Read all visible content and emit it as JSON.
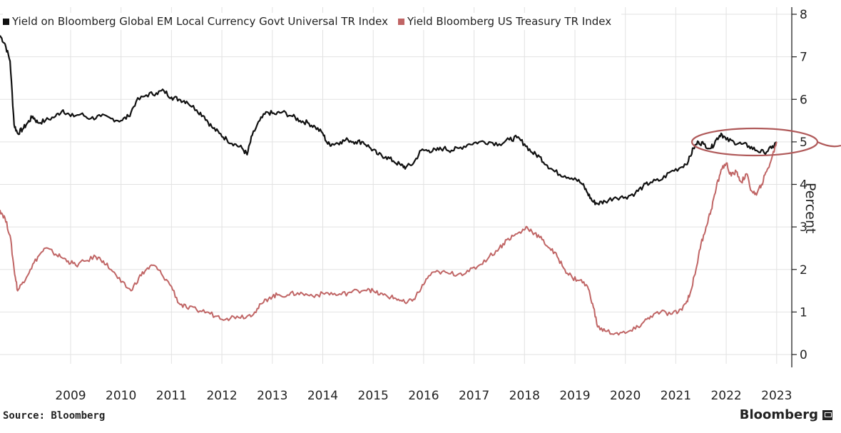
{
  "chart_data": {
    "type": "line",
    "title": "",
    "xlabel": "",
    "ylabel": "Percent",
    "ylim": [
      0,
      8
    ],
    "yticks": [
      "0",
      "1",
      "2",
      "3",
      "4",
      "5",
      "6",
      "7",
      "8"
    ],
    "y_axis_side": "right",
    "xticks": [
      "2009",
      "2010",
      "2011",
      "2012",
      "2013",
      "2014",
      "2015",
      "2016",
      "2017",
      "2018",
      "2019",
      "2020",
      "2021",
      "2022",
      "2023"
    ],
    "xlim": [
      2008.1,
      2023.8
    ],
    "grid": true,
    "legend_position": "top-left",
    "series": [
      {
        "name": "Yield on Bloomberg Global EM Local Currency Govt Universal TR Index",
        "color": "#111111",
        "points": [
          [
            2008.1,
            7.5
          ],
          [
            2008.2,
            7.3
          ],
          [
            2008.3,
            6.9
          ],
          [
            2008.38,
            5.4
          ],
          [
            2008.45,
            5.2
          ],
          [
            2008.55,
            5.3
          ],
          [
            2008.65,
            5.45
          ],
          [
            2008.75,
            5.6
          ],
          [
            2008.85,
            5.45
          ],
          [
            2009.0,
            5.5
          ],
          [
            2009.2,
            5.6
          ],
          [
            2009.35,
            5.75
          ],
          [
            2009.5,
            5.6
          ],
          [
            2009.7,
            5.65
          ],
          [
            2009.9,
            5.55
          ],
          [
            2010.1,
            5.6
          ],
          [
            2010.3,
            5.55
          ],
          [
            2010.5,
            5.5
          ],
          [
            2010.65,
            5.6
          ],
          [
            2010.8,
            5.95
          ],
          [
            2011.0,
            6.1
          ],
          [
            2011.2,
            6.15
          ],
          [
            2011.35,
            6.2
          ],
          [
            2011.5,
            6.05
          ],
          [
            2011.65,
            6.0
          ],
          [
            2011.8,
            5.95
          ],
          [
            2012.0,
            5.75
          ],
          [
            2012.15,
            5.6
          ],
          [
            2012.3,
            5.35
          ],
          [
            2012.45,
            5.2
          ],
          [
            2012.6,
            5.05
          ],
          [
            2012.75,
            4.95
          ],
          [
            2012.9,
            4.85
          ],
          [
            2013.0,
            4.7
          ],
          [
            2013.1,
            5.15
          ],
          [
            2013.25,
            5.5
          ],
          [
            2013.4,
            5.7
          ],
          [
            2013.55,
            5.65
          ],
          [
            2013.7,
            5.7
          ],
          [
            2013.9,
            5.6
          ],
          [
            2014.05,
            5.5
          ],
          [
            2014.2,
            5.45
          ],
          [
            2014.35,
            5.35
          ],
          [
            2014.5,
            5.2
          ],
          [
            2014.6,
            4.95
          ],
          [
            2014.7,
            4.95
          ],
          [
            2014.85,
            5.0
          ],
          [
            2015.0,
            5.05
          ],
          [
            2015.15,
            5.0
          ],
          [
            2015.3,
            5.0
          ],
          [
            2015.45,
            4.85
          ],
          [
            2015.6,
            4.7
          ],
          [
            2015.75,
            4.65
          ],
          [
            2015.9,
            4.55
          ],
          [
            2016.05,
            4.45
          ],
          [
            2016.15,
            4.4
          ],
          [
            2016.3,
            4.5
          ],
          [
            2016.45,
            4.8
          ],
          [
            2016.6,
            4.8
          ],
          [
            2016.75,
            4.8
          ],
          [
            2016.9,
            4.85
          ],
          [
            2017.05,
            4.8
          ],
          [
            2017.2,
            4.85
          ],
          [
            2017.4,
            4.95
          ],
          [
            2017.6,
            5.0
          ],
          [
            2017.8,
            5.0
          ],
          [
            2018.0,
            4.95
          ],
          [
            2018.2,
            5.05
          ],
          [
            2018.35,
            5.1
          ],
          [
            2018.5,
            4.95
          ],
          [
            2018.65,
            4.75
          ],
          [
            2018.8,
            4.65
          ],
          [
            2018.95,
            4.45
          ],
          [
            2019.1,
            4.3
          ],
          [
            2019.3,
            4.2
          ],
          [
            2019.5,
            4.15
          ],
          [
            2019.65,
            4.0
          ],
          [
            2019.75,
            3.8
          ],
          [
            2019.85,
            3.6
          ],
          [
            2019.95,
            3.55
          ],
          [
            2020.1,
            3.6
          ],
          [
            2020.3,
            3.7
          ],
          [
            2020.5,
            3.7
          ],
          [
            2020.7,
            3.8
          ],
          [
            2020.85,
            3.95
          ],
          [
            2021.0,
            4.05
          ],
          [
            2021.2,
            4.1
          ],
          [
            2021.4,
            4.3
          ],
          [
            2021.6,
            4.4
          ],
          [
            2021.75,
            4.55
          ],
          [
            2021.85,
            4.85
          ],
          [
            2021.95,
            5.0
          ],
          [
            2022.05,
            4.95
          ],
          [
            2022.2,
            4.85
          ],
          [
            2022.3,
            5.05
          ],
          [
            2022.4,
            5.2
          ],
          [
            2022.5,
            5.05
          ],
          [
            2022.65,
            5.0
          ],
          [
            2022.8,
            4.95
          ],
          [
            2022.95,
            4.9
          ],
          [
            2023.1,
            4.8
          ],
          [
            2023.25,
            4.75
          ],
          [
            2023.4,
            4.85
          ],
          [
            2023.5,
            5.0
          ]
        ]
      },
      {
        "name": "Yield Bloomberg US Treasury TR Index",
        "color": "#c06565",
        "points": [
          [
            2008.1,
            3.4
          ],
          [
            2008.2,
            3.2
          ],
          [
            2008.3,
            2.8
          ],
          [
            2008.38,
            2.0
          ],
          [
            2008.45,
            1.5
          ],
          [
            2008.55,
            1.7
          ],
          [
            2008.7,
            2.0
          ],
          [
            2008.85,
            2.3
          ],
          [
            2009.0,
            2.5
          ],
          [
            2009.15,
            2.4
          ],
          [
            2009.3,
            2.3
          ],
          [
            2009.45,
            2.2
          ],
          [
            2009.6,
            2.1
          ],
          [
            2009.8,
            2.2
          ],
          [
            2010.0,
            2.3
          ],
          [
            2010.15,
            2.2
          ],
          [
            2010.3,
            2.0
          ],
          [
            2010.5,
            1.7
          ],
          [
            2010.7,
            1.5
          ],
          [
            2010.85,
            1.8
          ],
          [
            2011.0,
            2.0
          ],
          [
            2011.15,
            2.1
          ],
          [
            2011.3,
            1.9
          ],
          [
            2011.5,
            1.6
          ],
          [
            2011.65,
            1.2
          ],
          [
            2011.8,
            1.1
          ],
          [
            2012.0,
            1.05
          ],
          [
            2012.2,
            1.0
          ],
          [
            2012.4,
            0.9
          ],
          [
            2012.6,
            0.85
          ],
          [
            2012.8,
            0.9
          ],
          [
            2013.0,
            0.9
          ],
          [
            2013.15,
            1.0
          ],
          [
            2013.3,
            1.2
          ],
          [
            2013.45,
            1.35
          ],
          [
            2013.6,
            1.4
          ],
          [
            2013.8,
            1.4
          ],
          [
            2014.0,
            1.45
          ],
          [
            2014.2,
            1.4
          ],
          [
            2014.4,
            1.4
          ],
          [
            2014.6,
            1.45
          ],
          [
            2014.8,
            1.4
          ],
          [
            2015.0,
            1.45
          ],
          [
            2015.2,
            1.5
          ],
          [
            2015.4,
            1.55
          ],
          [
            2015.55,
            1.45
          ],
          [
            2015.7,
            1.4
          ],
          [
            2015.85,
            1.35
          ],
          [
            2016.0,
            1.3
          ],
          [
            2016.15,
            1.2
          ],
          [
            2016.3,
            1.3
          ],
          [
            2016.45,
            1.55
          ],
          [
            2016.6,
            1.85
          ],
          [
            2016.8,
            1.95
          ],
          [
            2017.0,
            1.9
          ],
          [
            2017.2,
            1.9
          ],
          [
            2017.4,
            1.95
          ],
          [
            2017.6,
            2.1
          ],
          [
            2017.8,
            2.3
          ],
          [
            2018.0,
            2.5
          ],
          [
            2018.15,
            2.7
          ],
          [
            2018.3,
            2.8
          ],
          [
            2018.45,
            2.9
          ],
          [
            2018.55,
            3.0
          ],
          [
            2018.7,
            2.85
          ],
          [
            2018.85,
            2.7
          ],
          [
            2019.0,
            2.5
          ],
          [
            2019.15,
            2.3
          ],
          [
            2019.3,
            2.0
          ],
          [
            2019.45,
            1.8
          ],
          [
            2019.6,
            1.75
          ],
          [
            2019.75,
            1.6
          ],
          [
            2019.85,
            1.2
          ],
          [
            2019.95,
            0.65
          ],
          [
            2020.1,
            0.55
          ],
          [
            2020.3,
            0.5
          ],
          [
            2020.5,
            0.5
          ],
          [
            2020.7,
            0.6
          ],
          [
            2020.85,
            0.75
          ],
          [
            2021.0,
            0.9
          ],
          [
            2021.2,
            1.0
          ],
          [
            2021.4,
            0.95
          ],
          [
            2021.55,
            1.0
          ],
          [
            2021.7,
            1.2
          ],
          [
            2021.8,
            1.5
          ],
          [
            2021.9,
            2.0
          ],
          [
            2022.0,
            2.6
          ],
          [
            2022.1,
            3.0
          ],
          [
            2022.2,
            3.4
          ],
          [
            2022.3,
            3.9
          ],
          [
            2022.4,
            4.35
          ],
          [
            2022.5,
            4.5
          ],
          [
            2022.6,
            4.2
          ],
          [
            2022.7,
            4.3
          ],
          [
            2022.8,
            4.05
          ],
          [
            2022.9,
            4.25
          ],
          [
            2023.0,
            3.85
          ],
          [
            2023.1,
            3.75
          ],
          [
            2023.2,
            4.0
          ],
          [
            2023.3,
            4.3
          ],
          [
            2023.4,
            4.6
          ],
          [
            2023.5,
            5.0
          ]
        ]
      }
    ]
  },
  "source": "Source: Bloomberg",
  "brand": "Bloomberg",
  "brand_icon": "bloomberg-terminal-icon"
}
